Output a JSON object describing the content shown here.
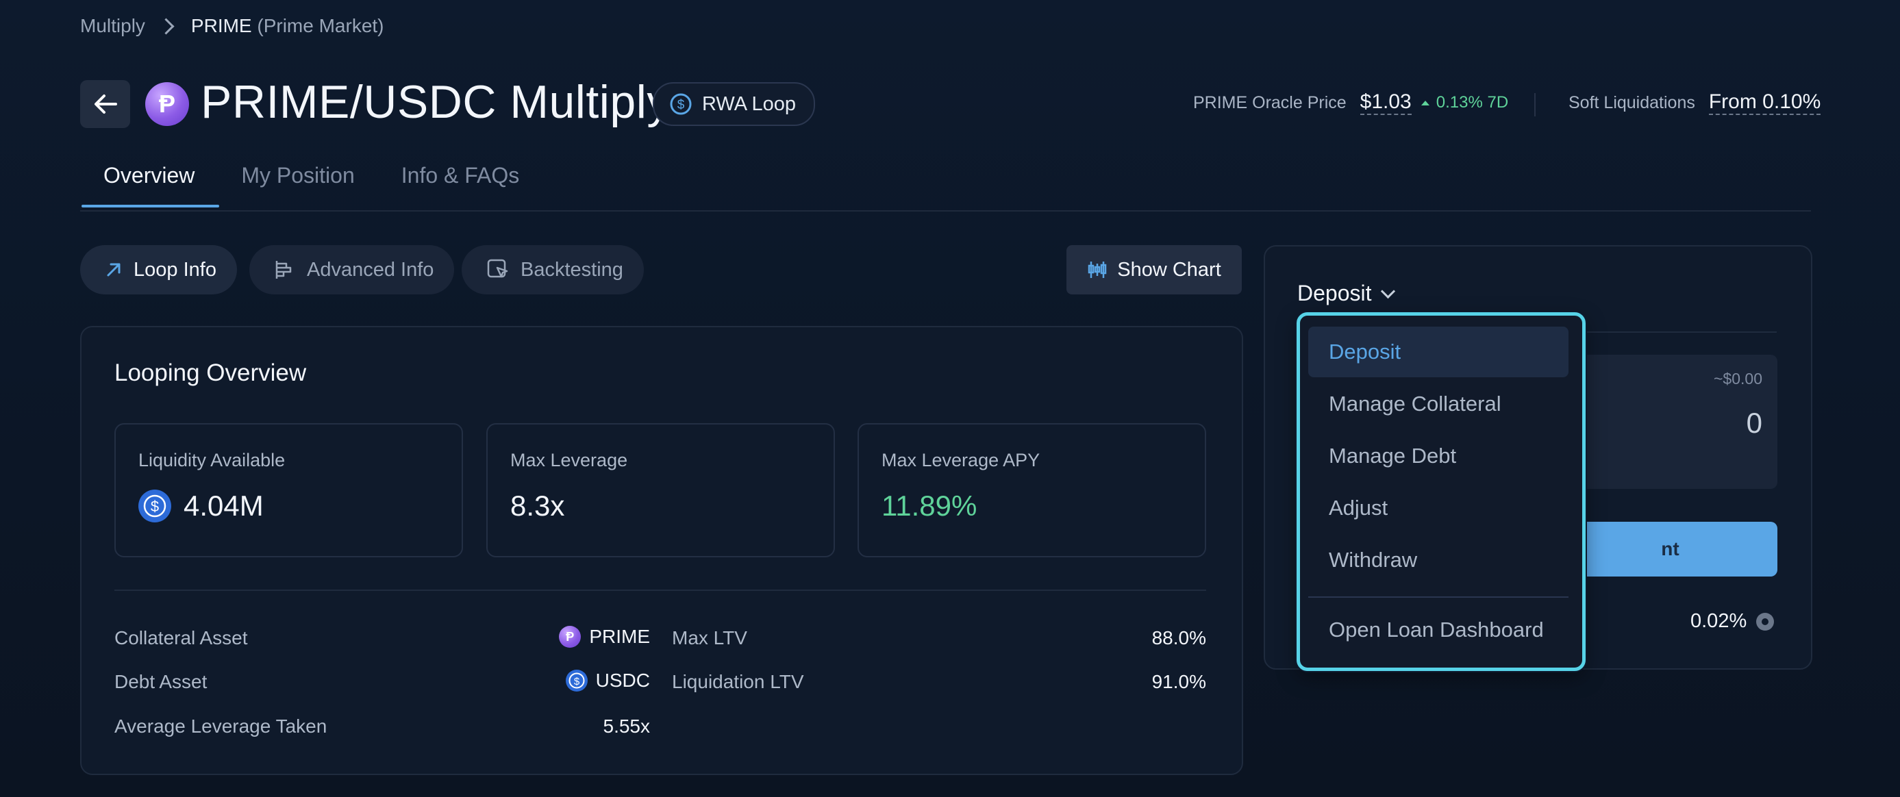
{
  "breadcrumb": {
    "parent": "Multiply",
    "current": "PRIME",
    "current_sub": "(Prime Market)"
  },
  "header": {
    "token_glyph": "Ᵽ",
    "title": "PRIME/USDC Multiply",
    "badge": "RWA Loop",
    "oracle_label": "PRIME Oracle Price",
    "oracle_price": "$1.03",
    "oracle_change": "0.13% 7D",
    "soft_liq_label": "Soft Liquidations",
    "soft_liq_value": "From 0.10%"
  },
  "tabs": [
    {
      "label": "Overview",
      "active": true
    },
    {
      "label": "My Position",
      "active": false
    },
    {
      "label": "Info & FAQs",
      "active": false
    }
  ],
  "subtabs": [
    {
      "label": "Loop Info",
      "icon": "arrow-up-right-icon",
      "active": true
    },
    {
      "label": "Advanced Info",
      "icon": "bar-chart-horizontal-icon",
      "active": false
    },
    {
      "label": "Backtesting",
      "icon": "cursor-select-icon",
      "active": false
    }
  ],
  "show_chart": "Show Chart",
  "overview": {
    "title": "Looping Overview",
    "stats": [
      {
        "label": "Liquidity Available",
        "value": "4.04M"
      },
      {
        "label": "Max Leverage",
        "value": "8.3x"
      },
      {
        "label": "Max Leverage APY",
        "value": "11.89%"
      }
    ],
    "rows_left": [
      {
        "label": "Collateral Asset",
        "value": "PRIME"
      },
      {
        "label": "Debt Asset",
        "value": "USDC"
      },
      {
        "label": "Average Leverage Taken",
        "value": "5.55x"
      }
    ],
    "rows_right": [
      {
        "label": "Max LTV",
        "value": "88.0%"
      },
      {
        "label": "Liquidation LTV",
        "value": "91.0%"
      }
    ]
  },
  "panel": {
    "mode": "Deposit",
    "usd_hint": "~$0.00",
    "amount": "0",
    "action_partial": "nt",
    "slippage": "0.02%"
  },
  "dropdown": {
    "items": [
      "Deposit",
      "Manage Collateral",
      "Manage Debt",
      "Adjust",
      "Withdraw"
    ],
    "footer": "Open Loan Dashboard",
    "selected": "Deposit"
  },
  "colors": {
    "accent": "#5aa6e6",
    "positive": "#5fd39a",
    "focus_ring": "#57d3e8"
  }
}
